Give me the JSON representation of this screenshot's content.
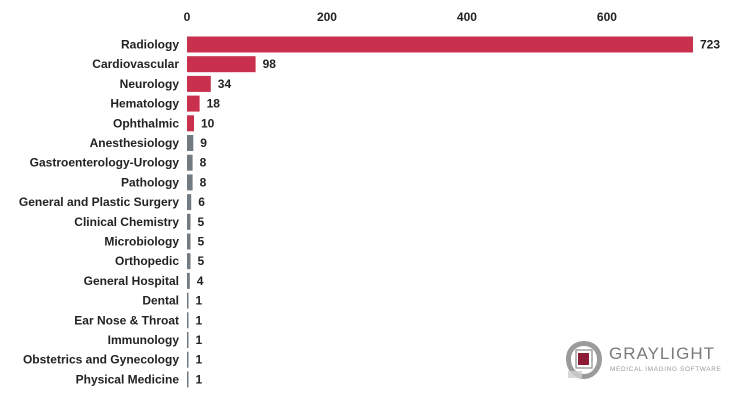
{
  "chart_data": {
    "type": "bar",
    "orientation": "horizontal",
    "title": "",
    "xlabel": "",
    "ylabel": "",
    "xlim": [
      0,
      723
    ],
    "x_ticks": [
      0,
      200,
      400,
      600
    ],
    "x_axis_position": "top",
    "grid": false,
    "categories": [
      "Radiology",
      "Cardiovascular",
      "Neurology",
      "Hematology",
      "Ophthalmic",
      "Anesthesiology",
      "Gastroenterology-Urology",
      "Pathology",
      "General and Plastic Surgery",
      "Clinical Chemistry",
      "Microbiology",
      "Orthopedic",
      "General Hospital",
      "Dental",
      "Ear Nose & Throat",
      "Immunology",
      "Obstetrics and Gynecology",
      "Physical Medicine"
    ],
    "values": [
      723,
      98,
      34,
      18,
      10,
      9,
      8,
      8,
      6,
      5,
      5,
      5,
      4,
      1,
      1,
      1,
      1,
      1
    ],
    "bar_colors": [
      "#c8304e",
      "#c8304e",
      "#c8304e",
      "#c8304e",
      "#c8304e",
      "#737b82",
      "#737b82",
      "#737b82",
      "#737b82",
      "#737b82",
      "#737b82",
      "#737b82",
      "#737b82",
      "#737b82",
      "#737b82",
      "#737b82",
      "#737b82",
      "#737b82"
    ],
    "data_labels": true
  },
  "logo": {
    "name": "GRAYLIGHT",
    "tagline": "MEDICAL IMAGING SOFTWARE",
    "mark_color": "#8d1b35",
    "ring_color": "#8a8a8a"
  }
}
